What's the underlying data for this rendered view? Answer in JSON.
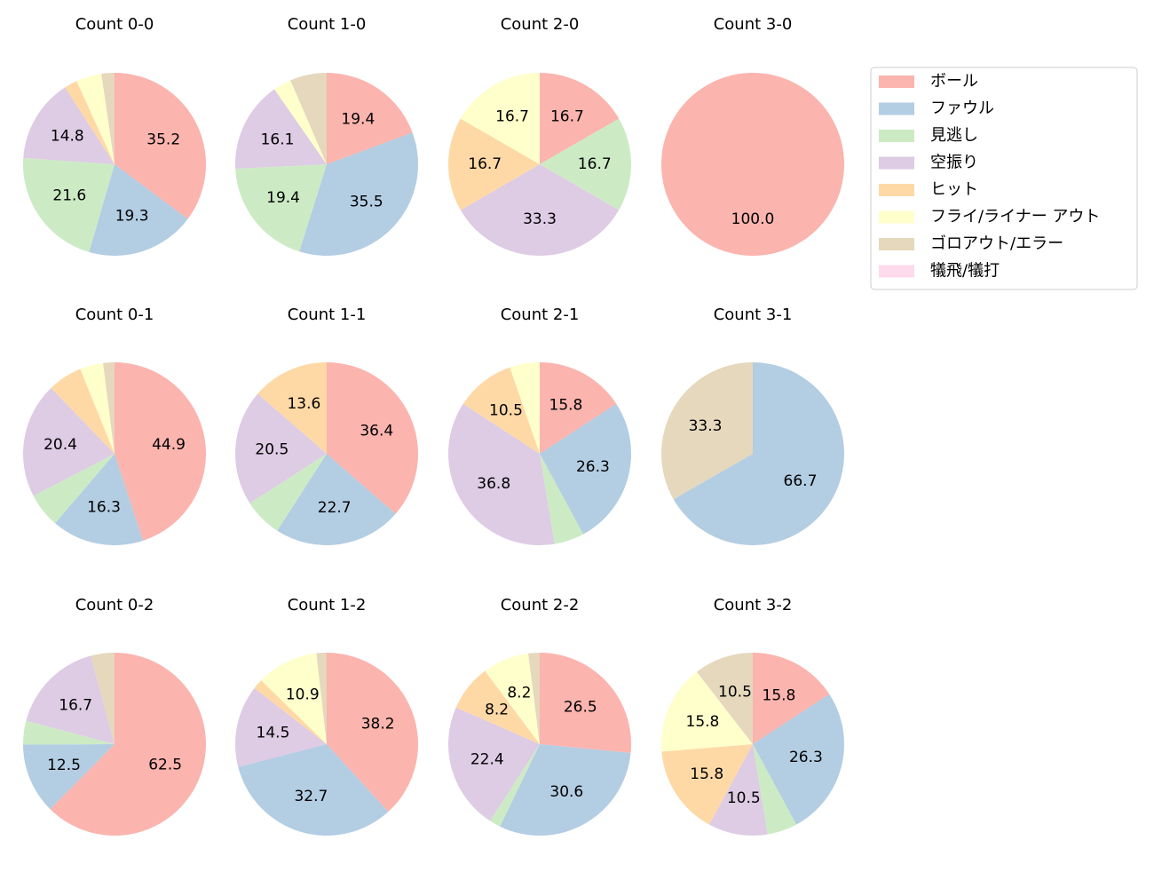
{
  "legend": {
    "categories": [
      "ボール",
      "ファウル",
      "見逃し",
      "空振り",
      "ヒット",
      "フライ/ライナー アウト",
      "ゴロアウト/エラー",
      "犠飛/犠打"
    ],
    "colors": [
      "#fbb4ae",
      "#b3cde3",
      "#ccebc5",
      "#decbe4",
      "#fed9a6",
      "#ffffcc",
      "#e5d8bd",
      "#fddaec"
    ]
  },
  "chart_data": [
    {
      "type": "pie",
      "title": "Count 0-0",
      "values": [
        35.2,
        19.3,
        21.6,
        14.8,
        2.3,
        4.5,
        2.3,
        0
      ],
      "value_labels": [
        "35.2",
        "19.3",
        "21.6",
        "14.8",
        null,
        null,
        null,
        null
      ]
    },
    {
      "type": "pie",
      "title": "Count 1-0",
      "values": [
        19.4,
        35.5,
        19.4,
        16.1,
        0,
        3.2,
        6.5,
        0
      ],
      "value_labels": [
        "19.4",
        "35.5",
        "19.4",
        "16.1",
        null,
        null,
        null,
        null
      ]
    },
    {
      "type": "pie",
      "title": "Count 2-0",
      "values": [
        16.7,
        0,
        16.7,
        33.3,
        16.7,
        16.7,
        0,
        0
      ],
      "value_labels": [
        "16.7",
        null,
        "16.7",
        "33.3",
        "16.7",
        "16.7",
        null,
        null
      ]
    },
    {
      "type": "pie",
      "title": "Count 3-0",
      "values": [
        100,
        0,
        0,
        0,
        0,
        0,
        0,
        0
      ],
      "value_labels": [
        "100.0",
        null,
        null,
        null,
        null,
        null,
        null,
        null
      ]
    },
    {
      "type": "pie",
      "title": "Count 0-1",
      "values": [
        44.9,
        16.3,
        6.1,
        20.4,
        6.1,
        4.1,
        2.0,
        0
      ],
      "value_labels": [
        "44.9",
        "16.3",
        null,
        "20.4",
        null,
        null,
        null,
        null
      ]
    },
    {
      "type": "pie",
      "title": "Count 1-1",
      "values": [
        36.4,
        22.7,
        6.8,
        20.5,
        13.6,
        0,
        0,
        0
      ],
      "value_labels": [
        "36.4",
        "22.7",
        null,
        "20.5",
        "13.6",
        null,
        null,
        null
      ]
    },
    {
      "type": "pie",
      "title": "Count 2-1",
      "values": [
        15.8,
        26.3,
        5.3,
        36.8,
        10.5,
        5.3,
        0,
        0
      ],
      "value_labels": [
        "15.8",
        "26.3",
        null,
        "36.8",
        "10.5",
        null,
        null,
        null
      ]
    },
    {
      "type": "pie",
      "title": "Count 3-1",
      "values": [
        0,
        66.7,
        0,
        0,
        0,
        0,
        33.3,
        0
      ],
      "value_labels": [
        null,
        "66.7",
        null,
        null,
        null,
        null,
        "33.3",
        null
      ]
    },
    {
      "type": "pie",
      "title": "Count 0-2",
      "values": [
        62.5,
        12.5,
        4.2,
        16.7,
        0,
        0,
        4.2,
        0
      ],
      "value_labels": [
        "62.5",
        "12.5",
        null,
        "16.7",
        null,
        null,
        null,
        null
      ]
    },
    {
      "type": "pie",
      "title": "Count 1-2",
      "values": [
        38.2,
        32.7,
        0,
        14.5,
        1.8,
        10.9,
        1.8,
        0
      ],
      "value_labels": [
        "38.2",
        "32.7",
        null,
        "14.5",
        null,
        "10.9",
        null,
        null
      ]
    },
    {
      "type": "pie",
      "title": "Count 2-2",
      "values": [
        26.5,
        30.6,
        2.0,
        22.4,
        8.2,
        8.2,
        2.0,
        0
      ],
      "value_labels": [
        "26.5",
        "30.6",
        null,
        "22.4",
        "8.2",
        "8.2",
        null,
        null
      ]
    },
    {
      "type": "pie",
      "title": "Count 3-2",
      "values": [
        15.8,
        26.3,
        5.3,
        10.5,
        15.8,
        15.8,
        10.5,
        0
      ],
      "value_labels": [
        "15.8",
        "26.3",
        null,
        "10.5",
        "15.8",
        "15.8",
        "10.5",
        null
      ]
    }
  ]
}
